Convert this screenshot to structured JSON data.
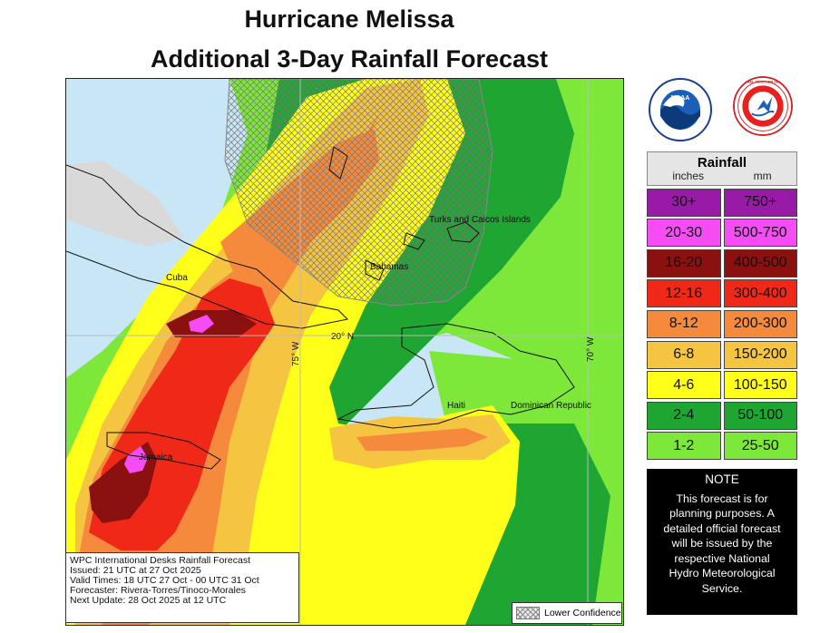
{
  "title": {
    "line1": "Hurricane Melissa",
    "line2": "Additional 3-Day Rainfall Forecast"
  },
  "map": {
    "labels": {
      "cuba": "Cuba",
      "jamaica": "Jamaica",
      "bahamas": "Bahamas",
      "turks": "Turks and Caicos Islands",
      "haiti": "Haiti",
      "dominican": "Dominican Republic",
      "lat20": "20° N",
      "lon75": "75° W",
      "lon70": "70° W"
    },
    "colors": {
      "ocean": "#c8e6f5",
      "land": "#d9d9d9",
      "r1_2": "#7ee83a",
      "r2_4": "#1fa532",
      "r4_6": "#ffff1a",
      "r6_8": "#f5c542",
      "r8_12": "#f58a3c",
      "r12_16": "#f02818",
      "r16_20": "#8b1010",
      "r20_30": "#f54cf5"
    }
  },
  "info": {
    "line1": "WPC International Desks Rainfall Forecast",
    "line2": "Issued: 21 UTC at 27 Oct 2025",
    "line3": "Valid Times: 18 UTC 27 Oct - 00 UTC 31 Oct",
    "line4": "Forecaster: Rivera-Torres/Tinoco-Morales",
    "line5": "Next Update: 28 Oct 2025 at 12 UTC"
  },
  "lower_confidence": "Lower Confidence",
  "logos": {
    "noaa": "NOAA",
    "nws": "NATIONAL WEATHER SERVICE"
  },
  "legend": {
    "title": "Rainfall",
    "unit_in": "inches",
    "unit_mm": "mm",
    "rows": [
      {
        "in": "30+",
        "mm": "750+",
        "color": "#9a1aa8"
      },
      {
        "in": "20-30",
        "mm": "500-750",
        "color": "#f54cf5"
      },
      {
        "in": "16-20",
        "mm": "400-500",
        "color": "#8b1010"
      },
      {
        "in": "12-16",
        "mm": "300-400",
        "color": "#f02818"
      },
      {
        "in": "8-12",
        "mm": "200-300",
        "color": "#f58a3c"
      },
      {
        "in": "6-8",
        "mm": "150-200",
        "color": "#f5c542"
      },
      {
        "in": "4-6",
        "mm": "100-150",
        "color": "#ffff1a"
      },
      {
        "in": "2-4",
        "mm": "50-100",
        "color": "#1fa532"
      },
      {
        "in": "1-2",
        "mm": "25-50",
        "color": "#7ee83a"
      }
    ]
  },
  "note": {
    "heading": "NOTE",
    "line1": "This forecast is for",
    "line2": "planning purposes. A",
    "line3": "detailed official forecast",
    "line4": "will be issued by the",
    "line5": "respective National",
    "line6": "Hydro Meteorological",
    "line7": "Service."
  }
}
